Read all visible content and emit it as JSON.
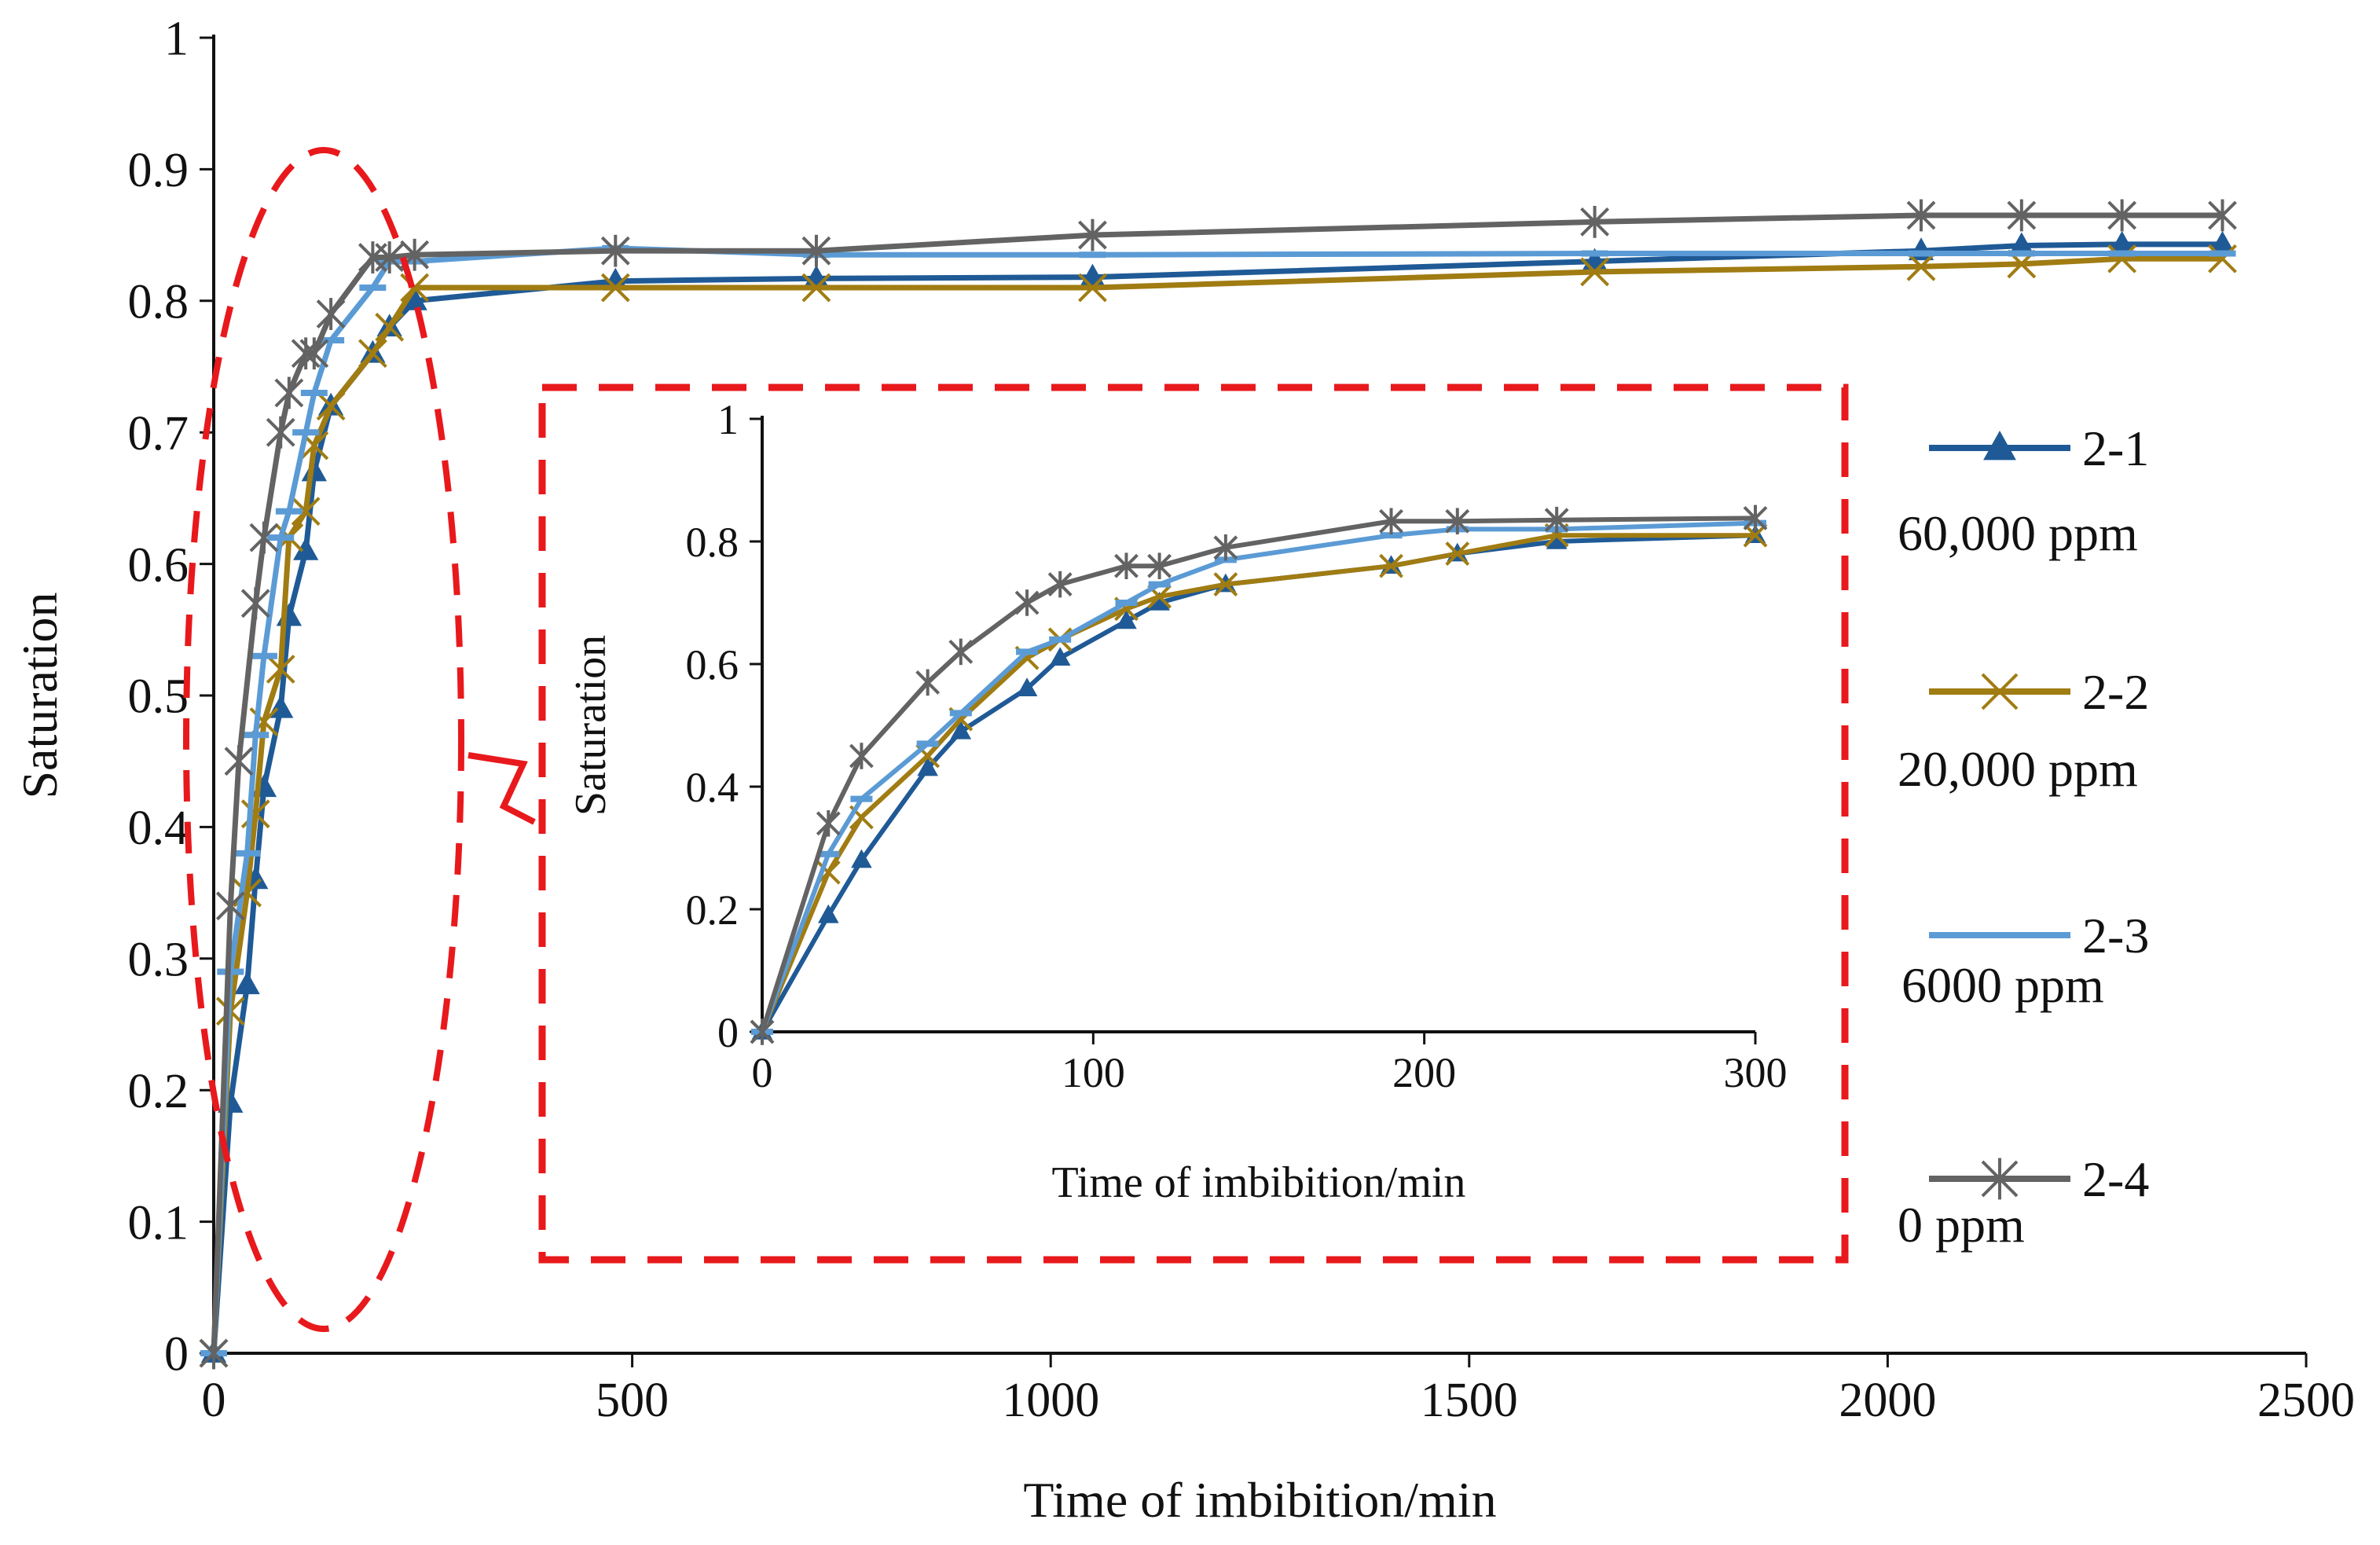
{
  "chart_data": [
    {
      "type": "line",
      "name": "main",
      "title": "",
      "xlabel": "Time of imbibition/min",
      "ylabel": "Saturation",
      "xlim": [
        0,
        2500
      ],
      "ylim": [
        0,
        1
      ],
      "xticks": [
        "0",
        "500",
        "1000",
        "1500",
        "2000",
        "2500"
      ],
      "yticks": [
        "0",
        "0.1",
        "0.2",
        "0.3",
        "0.4",
        "0.5",
        "0.6",
        "0.7",
        "0.8",
        "0.9",
        "1"
      ],
      "grid": false,
      "legend_position": "right",
      "series": [
        {
          "name": "2-1",
          "note": "60,000 ppm",
          "color": "#1f5a96",
          "marker": "triangle",
          "x": [
            0,
            20,
            40,
            50,
            60,
            80,
            90,
            110,
            120,
            140,
            190,
            210,
            240,
            480,
            720,
            1050,
            1650,
            2040,
            2160,
            2280,
            2400
          ],
          "y": [
            0,
            0.19,
            0.28,
            0.36,
            0.43,
            0.49,
            0.56,
            0.61,
            0.67,
            0.72,
            0.76,
            0.78,
            0.8,
            0.815,
            0.817,
            0.818,
            0.83,
            0.838,
            0.842,
            0.843,
            0.843
          ]
        },
        {
          "name": "2-2",
          "note": "20,000 ppm",
          "color": "#a07c12",
          "marker": "x",
          "x": [
            0,
            20,
            40,
            50,
            60,
            80,
            90,
            110,
            120,
            140,
            190,
            210,
            240,
            480,
            720,
            1050,
            1650,
            2040,
            2160,
            2280,
            2400
          ],
          "y": [
            0,
            0.26,
            0.35,
            0.41,
            0.48,
            0.52,
            0.62,
            0.64,
            0.69,
            0.72,
            0.76,
            0.78,
            0.81,
            0.81,
            0.81,
            0.81,
            0.822,
            0.826,
            0.828,
            0.832,
            0.832
          ]
        },
        {
          "name": "2-3",
          "note": "6000 ppm",
          "color": "#5b9bd5",
          "marker": "dash",
          "x": [
            0,
            20,
            40,
            50,
            60,
            80,
            90,
            110,
            120,
            140,
            190,
            210,
            240,
            480,
            720,
            1050,
            1650,
            2040,
            2160,
            2280,
            2400
          ],
          "y": [
            0,
            0.29,
            0.38,
            0.47,
            0.53,
            0.62,
            0.64,
            0.7,
            0.73,
            0.77,
            0.81,
            0.83,
            0.83,
            0.84,
            0.835,
            0.835,
            0.836,
            0.836,
            0.836,
            0.836,
            0.836
          ]
        },
        {
          "name": "2-4",
          "note": "0 ppm",
          "color": "#636363",
          "marker": "star",
          "x": [
            0,
            20,
            30,
            50,
            60,
            80,
            90,
            110,
            120,
            140,
            190,
            210,
            240,
            480,
            720,
            1050,
            1650,
            2040,
            2160,
            2280,
            2400
          ],
          "y": [
            0,
            0.34,
            0.45,
            0.57,
            0.62,
            0.7,
            0.73,
            0.76,
            0.76,
            0.79,
            0.833,
            0.833,
            0.835,
            0.838,
            0.838,
            0.85,
            0.86,
            0.865,
            0.865,
            0.865,
            0.865
          ]
        }
      ]
    },
    {
      "type": "line",
      "name": "inset",
      "title": "",
      "xlabel": "Time of imbibition/min",
      "ylabel": "Saturation",
      "xlim": [
        0,
        300
      ],
      "ylim": [
        0,
        1
      ],
      "xticks": [
        "0",
        "100",
        "200",
        "300"
      ],
      "yticks": [
        "0",
        "0.2",
        "0.4",
        "0.6",
        "0.8",
        "1"
      ],
      "grid": false,
      "series": [
        {
          "name": "2-1",
          "color": "#1f5a96",
          "marker": "triangle",
          "x": [
            0,
            20,
            30,
            50,
            60,
            80,
            90,
            110,
            120,
            140,
            190,
            210,
            240,
            300
          ],
          "y": [
            0,
            0.19,
            0.28,
            0.43,
            0.49,
            0.56,
            0.61,
            0.67,
            0.7,
            0.73,
            0.76,
            0.78,
            0.8,
            0.81
          ]
        },
        {
          "name": "2-2",
          "color": "#a07c12",
          "marker": "x",
          "x": [
            0,
            20,
            30,
            50,
            60,
            80,
            90,
            110,
            120,
            140,
            190,
            210,
            240,
            300
          ],
          "y": [
            0,
            0.26,
            0.35,
            0.45,
            0.51,
            0.61,
            0.64,
            0.69,
            0.71,
            0.73,
            0.76,
            0.78,
            0.81,
            0.81
          ]
        },
        {
          "name": "2-3",
          "color": "#5b9bd5",
          "marker": "dash",
          "x": [
            0,
            20,
            30,
            50,
            60,
            80,
            90,
            110,
            120,
            140,
            190,
            210,
            240,
            300
          ],
          "y": [
            0,
            0.29,
            0.38,
            0.47,
            0.52,
            0.62,
            0.64,
            0.7,
            0.73,
            0.77,
            0.81,
            0.82,
            0.82,
            0.83
          ]
        },
        {
          "name": "2-4",
          "color": "#636363",
          "marker": "star",
          "x": [
            0,
            20,
            30,
            50,
            60,
            80,
            90,
            110,
            120,
            140,
            190,
            210,
            240,
            300
          ],
          "y": [
            0,
            0.34,
            0.45,
            0.57,
            0.62,
            0.7,
            0.73,
            0.76,
            0.76,
            0.79,
            0.833,
            0.833,
            0.835,
            0.838
          ]
        }
      ]
    }
  ],
  "highlight_color": "#e8191c"
}
